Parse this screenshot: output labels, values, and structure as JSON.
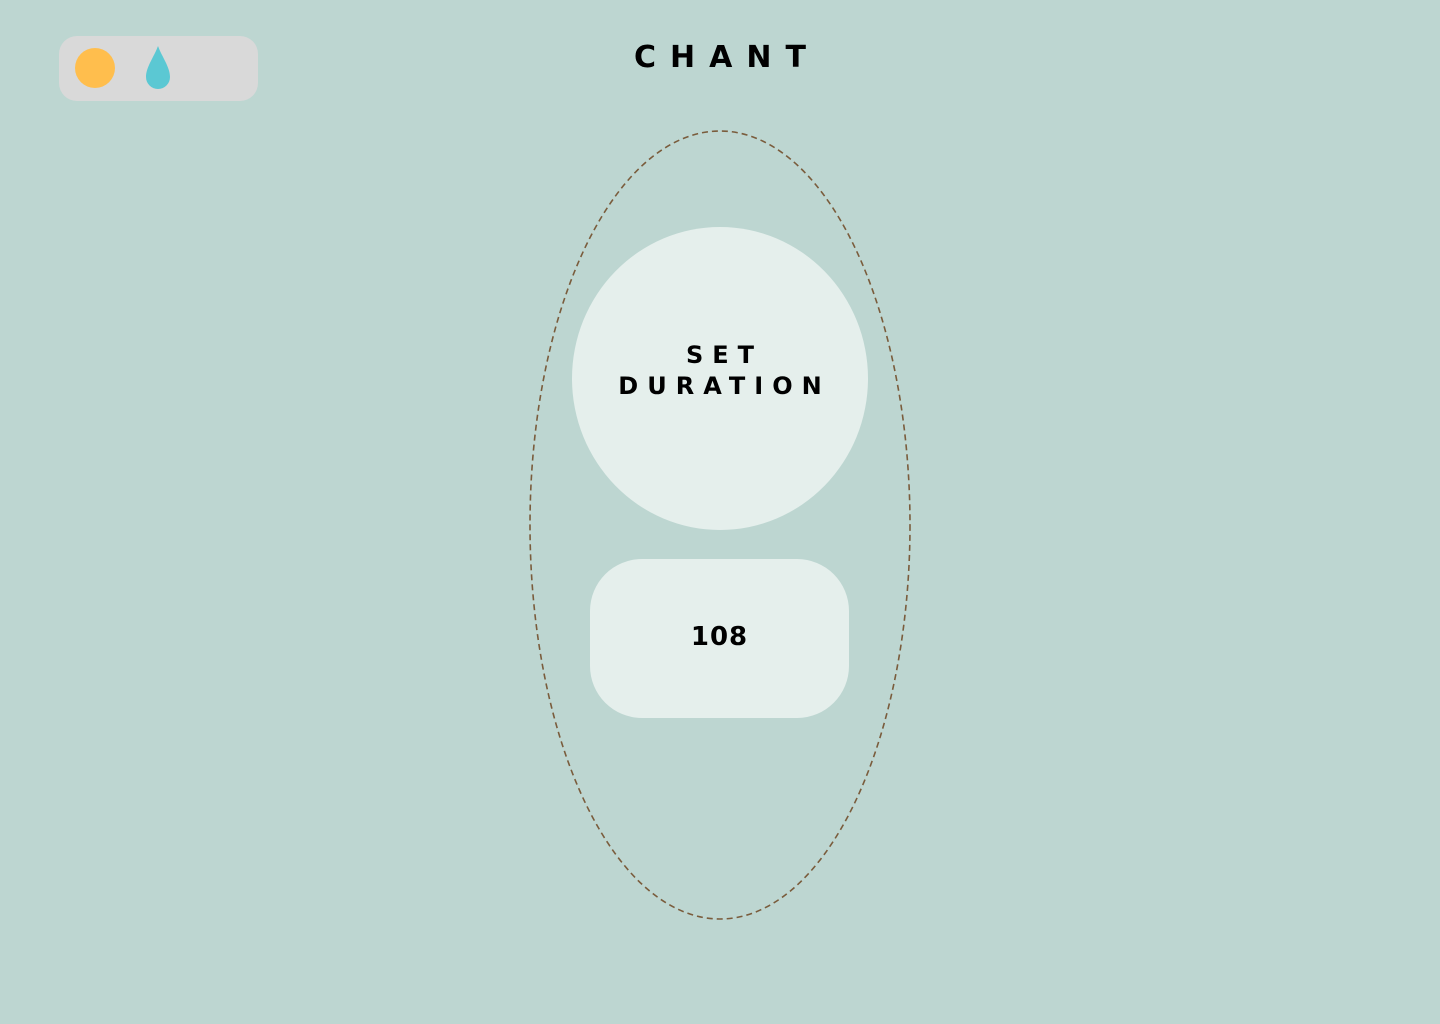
{
  "app": {
    "title": "CHANT"
  },
  "theme_toggle": {
    "icons": [
      "sun-icon",
      "drop-icon"
    ],
    "colors": {
      "background": "#D9D9D9",
      "sun": "#FFBE4D",
      "drop": "#5BC8D3"
    }
  },
  "duration_button": {
    "label_line1": "SET",
    "label_line2": "DURATION"
  },
  "count_button": {
    "value": "108"
  },
  "colors": {
    "page_background": "#BDD6D1",
    "button_background": "#E5EFEC",
    "orbit_outline": "#7A5C3C",
    "text": "#000000"
  }
}
